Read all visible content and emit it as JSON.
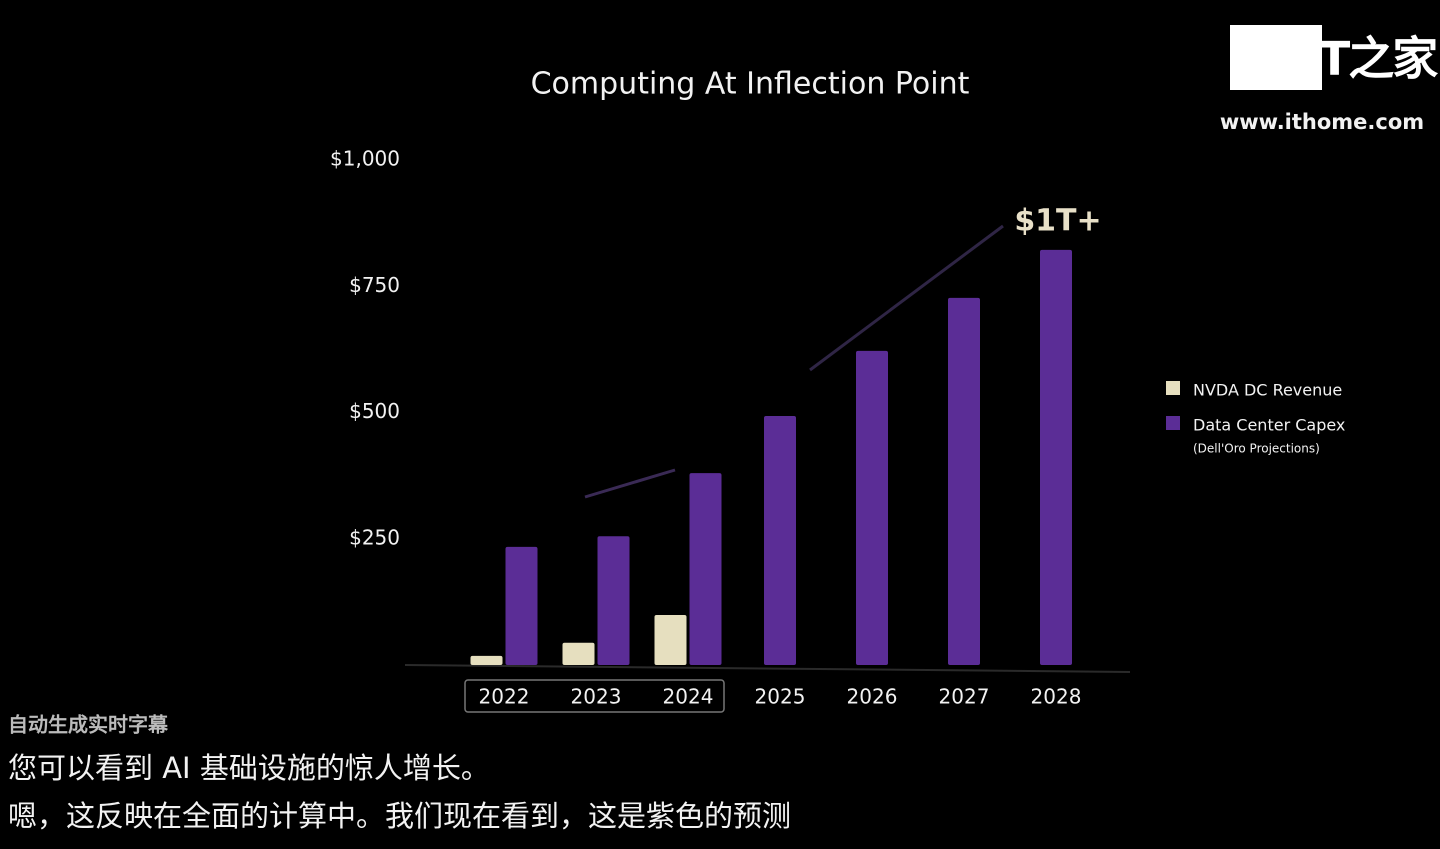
{
  "chart_data": {
    "type": "bar",
    "title": "Computing At Inflection Point",
    "categories": [
      "2022",
      "2023",
      "2024",
      "2025",
      "2026",
      "2027",
      "2028"
    ],
    "series": [
      {
        "name": "NVDA DC Revenue",
        "color": "#e6dfbf",
        "values": [
          18,
          44,
          99,
          null,
          null,
          null,
          null
        ]
      },
      {
        "name": "Data Center Capex",
        "color": "#5b2d96",
        "values": [
          234,
          255,
          380,
          493,
          622,
          727,
          822
        ]
      }
    ],
    "legend_note": "(Dell'Oro Projections)",
    "annotation": "$1T+",
    "ylim": [
      0,
      1000
    ],
    "yticks": [
      {
        "value": 250,
        "label": "$250"
      },
      {
        "value": 500,
        "label": "$500"
      },
      {
        "value": 750,
        "label": "$750"
      },
      {
        "value": 1000,
        "label": "$1,000"
      }
    ],
    "grid": false,
    "legend": "right"
  },
  "overlay": {
    "logo": "IT之家",
    "url": "www.ithome.com",
    "caption_header": "自动生成实时字幕",
    "captions": [
      "您可以看到 AI 基础设施的惊人增长。",
      "嗯，这反映在全面的计算中。我们现在看到，这是紫色的预测"
    ]
  }
}
